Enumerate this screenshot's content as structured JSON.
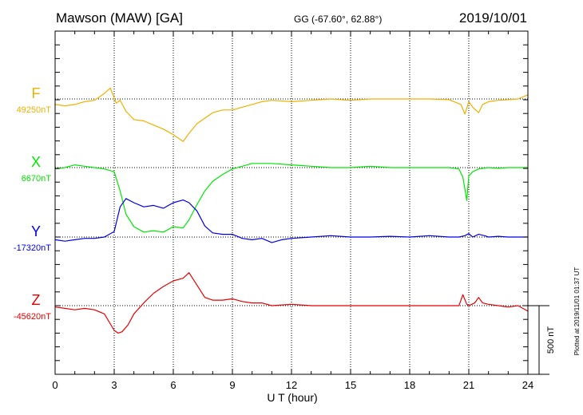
{
  "header": {
    "station": "Mawson (MAW)  [GA]",
    "coords": "GG (-67.60°,  62.88°)",
    "date": "2019/10/01"
  },
  "footer_note": "Plotted at 2019/11/01 01:37 UT",
  "scale_label": "500 nT",
  "colors": {
    "F": "#f0b000",
    "X": "#00e600",
    "Y": "#0000e6",
    "Z": "#e60000",
    "axis": "#000000",
    "grid": "#000000"
  },
  "chart_data": {
    "type": "line",
    "title": "Mawson (MAW)  [GA]",
    "xlabel": "U T (hour)",
    "xlim": [
      0,
      24
    ],
    "xticks": [
      0,
      3,
      6,
      9,
      12,
      15,
      18,
      21,
      24
    ],
    "scale_bar_nT": 500,
    "grid": "dotted",
    "series": [
      {
        "name": "F",
        "baseline_label": "49250nT",
        "baseline_nT": 49250,
        "color": "#f0b000",
        "x": [
          0,
          0.5,
          1,
          1.5,
          2,
          2.5,
          2.8,
          3.1,
          3.3,
          3.6,
          4,
          4.5,
          5,
          5.5,
          6,
          6.5,
          6.8,
          7.2,
          7.6,
          8,
          8.5,
          9,
          9.5,
          10,
          10.5,
          11,
          12,
          13,
          14,
          15,
          16,
          17,
          18,
          19,
          20,
          20.6,
          20.8,
          21,
          21.2,
          21.5,
          21.7,
          22,
          22.5,
          23,
          23.5,
          24
        ],
        "y": [
          49210,
          49200,
          49210,
          49230,
          49240,
          49290,
          49330,
          49220,
          49240,
          49160,
          49100,
          49090,
          49060,
          49030,
          48990,
          48940,
          49000,
          49070,
          49110,
          49150,
          49170,
          49170,
          49190,
          49210,
          49230,
          49240,
          49230,
          49240,
          49250,
          49240,
          49250,
          49250,
          49250,
          49250,
          49245,
          49210,
          49140,
          49230,
          49190,
          49150,
          49210,
          49230,
          49240,
          49245,
          49250,
          49280
        ]
      },
      {
        "name": "X",
        "baseline_label": "6670nT",
        "baseline_nT": 6670,
        "color": "#00e600",
        "x": [
          0,
          0.5,
          1,
          1.5,
          2,
          2.5,
          3,
          3.3,
          3.6,
          4,
          4.5,
          5,
          5.5,
          6,
          6.5,
          6.8,
          7.2,
          7.6,
          8,
          8.5,
          9,
          9.5,
          10,
          10.5,
          11,
          12,
          13,
          14,
          15,
          16,
          17,
          18,
          19,
          20,
          20.5,
          20.7,
          20.9,
          21,
          21.2,
          21.5,
          22,
          22.5,
          23,
          23.5,
          24
        ],
        "y": [
          6660,
          6670,
          6690,
          6680,
          6670,
          6660,
          6640,
          6500,
          6330,
          6240,
          6200,
          6210,
          6200,
          6240,
          6230,
          6290,
          6400,
          6500,
          6570,
          6620,
          6660,
          6680,
          6700,
          6700,
          6700,
          6690,
          6680,
          6670,
          6670,
          6680,
          6670,
          6670,
          6670,
          6670,
          6660,
          6600,
          6430,
          6610,
          6640,
          6660,
          6670,
          6665,
          6670,
          6670,
          6670
        ]
      },
      {
        "name": "Y",
        "baseline_label": "-17320nT",
        "baseline_nT": -17320,
        "color": "#0000e6",
        "x": [
          0,
          0.5,
          1,
          1.5,
          2,
          2.5,
          3,
          3.3,
          3.6,
          4,
          4.5,
          5,
          5.5,
          6,
          6.5,
          6.8,
          7.2,
          7.6,
          8,
          8.5,
          9,
          9.5,
          10,
          10.5,
          11,
          11.5,
          12,
          13,
          14,
          15,
          16,
          17,
          18,
          19,
          20,
          20.5,
          20.8,
          21,
          21.2,
          21.5,
          21.8,
          22,
          22.5,
          23,
          23.5,
          24
        ],
        "y": [
          -17340,
          -17350,
          -17340,
          -17330,
          -17330,
          -17320,
          -17280,
          -17100,
          -17040,
          -17070,
          -17100,
          -17090,
          -17110,
          -17070,
          -17050,
          -17070,
          -17130,
          -17240,
          -17290,
          -17300,
          -17300,
          -17330,
          -17340,
          -17330,
          -17360,
          -17340,
          -17330,
          -17320,
          -17310,
          -17320,
          -17320,
          -17315,
          -17320,
          -17310,
          -17320,
          -17320,
          -17310,
          -17295,
          -17320,
          -17300,
          -17310,
          -17320,
          -17315,
          -17320,
          -17320,
          -17320
        ]
      },
      {
        "name": "Z",
        "baseline_label": "-45620nT",
        "baseline_nT": -45620,
        "color": "#e60000",
        "x": [
          0,
          0.5,
          1,
          1.5,
          2,
          2.5,
          3,
          3.2,
          3.4,
          3.7,
          4,
          4.5,
          5,
          5.5,
          6,
          6.5,
          6.8,
          7.2,
          7.6,
          8,
          8.5,
          9,
          9.5,
          10,
          10.5,
          11,
          12,
          13,
          14,
          15,
          16,
          17,
          18,
          19,
          20,
          20.5,
          20.7,
          20.9,
          21,
          21.3,
          21.5,
          21.7,
          22,
          22.5,
          23,
          23.5,
          24
        ],
        "y": [
          -45630,
          -45640,
          -45650,
          -45640,
          -45650,
          -45680,
          -45800,
          -45820,
          -45810,
          -45760,
          -45680,
          -45600,
          -45530,
          -45480,
          -45440,
          -45420,
          -45380,
          -45470,
          -45560,
          -45580,
          -45580,
          -45570,
          -45590,
          -45600,
          -45600,
          -45620,
          -45610,
          -45620,
          -45620,
          -45620,
          -45620,
          -45620,
          -45620,
          -45620,
          -45620,
          -45620,
          -45540,
          -45610,
          -45620,
          -45600,
          -45560,
          -45600,
          -45610,
          -45620,
          -45630,
          -45620,
          -45660
        ]
      }
    ]
  }
}
